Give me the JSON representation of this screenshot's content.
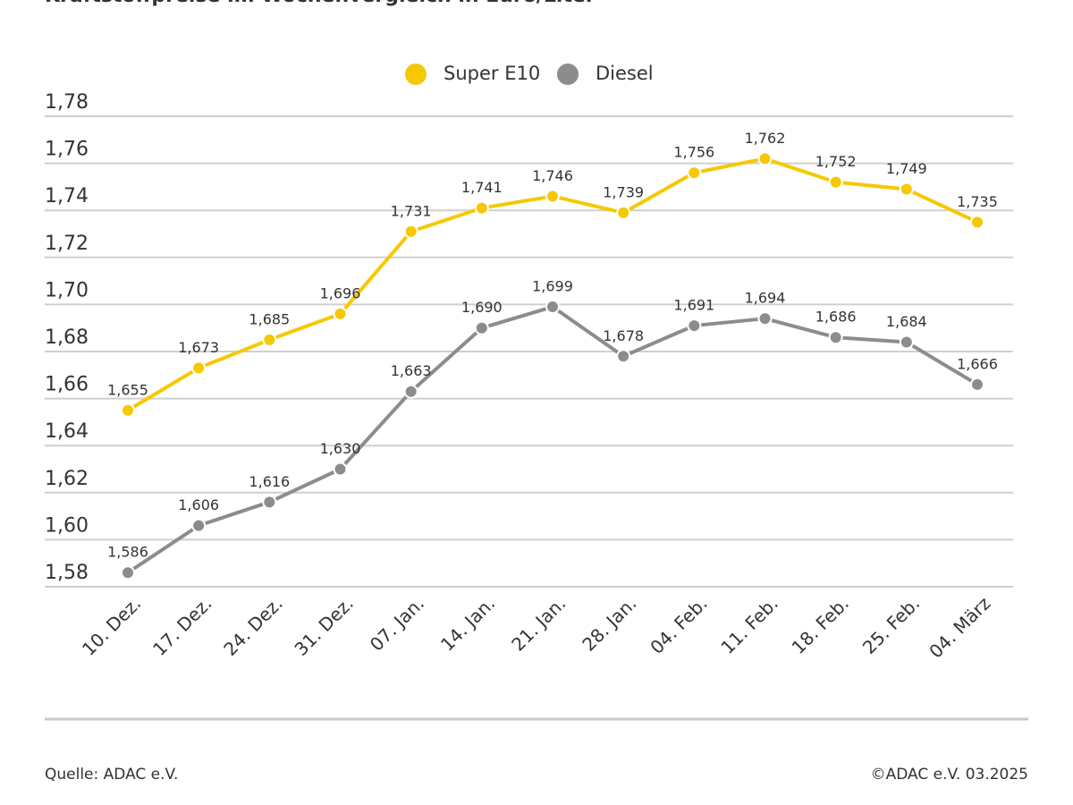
{
  "chart_data": {
    "type": "line",
    "title": "Kraftstoffpreise im Wochenvergleich in Euro/Liter",
    "categories": [
      "10. Dez.",
      "17. Dez.",
      "24. Dez.",
      "31. Dez.",
      "07. Jan.",
      "14. Jan.",
      "21. Jan.",
      "28. Jan.",
      "04. Feb.",
      "11. Feb.",
      "18. Feb.",
      "25. Feb.",
      "04. März"
    ],
    "series": [
      {
        "name": "Super E10",
        "color": "#f6c800",
        "values": [
          1.655,
          1.673,
          1.685,
          1.696,
          1.731,
          1.741,
          1.746,
          1.739,
          1.756,
          1.762,
          1.752,
          1.749,
          1.735
        ],
        "value_labels": [
          "1,655",
          "1,673",
          "1,685",
          "1,696",
          "1,731",
          "1,741",
          "1,746",
          "1,739",
          "1,756",
          "1,762",
          "1,752",
          "1,749",
          "1,735"
        ]
      },
      {
        "name": "Diesel",
        "color": "#8c8c8c",
        "values": [
          1.586,
          1.606,
          1.616,
          1.63,
          1.663,
          1.69,
          1.699,
          1.678,
          1.691,
          1.694,
          1.686,
          1.684,
          1.666
        ],
        "value_labels": [
          "1,586",
          "1,606",
          "1,616",
          "1,630",
          "1,663",
          "1,690",
          "1,699",
          "1,678",
          "1,691",
          "1,694",
          "1,686",
          "1,684",
          "1,666"
        ]
      }
    ],
    "ylim": [
      1.58,
      1.78
    ],
    "yticks": [
      {
        "value": 1.58,
        "label": "1,58"
      },
      {
        "value": 1.6,
        "label": "1,60"
      },
      {
        "value": 1.62,
        "label": "1,62"
      },
      {
        "value": 1.64,
        "label": "1,64"
      },
      {
        "value": 1.66,
        "label": "1,66"
      },
      {
        "value": 1.68,
        "label": "1,68"
      },
      {
        "value": 1.7,
        "label": "1,70"
      },
      {
        "value": 1.72,
        "label": "1,72"
      },
      {
        "value": 1.74,
        "label": "1,74"
      },
      {
        "value": 1.76,
        "label": "1,76"
      },
      {
        "value": 1.78,
        "label": "1,78"
      }
    ],
    "grid": true,
    "legend": "top",
    "source": "Quelle: ADAC e.V.",
    "credit": "©ADAC e.V. 03.2025"
  }
}
